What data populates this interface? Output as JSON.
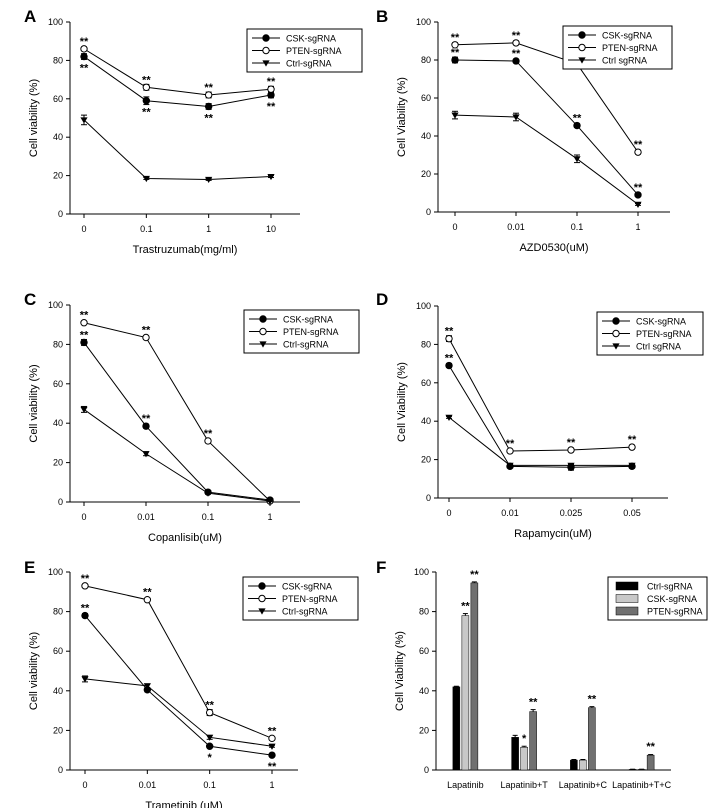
{
  "chart_data": [
    {
      "panel": "A",
      "type": "line",
      "categories": [
        "0",
        "0.1",
        "1",
        "10"
      ],
      "xlabel": "Trastruzumab(mg/ml)",
      "ylabel": "Cell viability (%)",
      "ylim": [
        0,
        100
      ],
      "yticks": [
        "0",
        "20",
        "40",
        "60",
        "80",
        "100"
      ],
      "legend_position": "top-right",
      "series": [
        {
          "name": "CSK-sgRNA",
          "marker": "filled-circle",
          "values": [
            82,
            59,
            56,
            62
          ],
          "errors": [
            1.5,
            2,
            1.5,
            1.5
          ]
        },
        {
          "name": "PTEN-sgRNA",
          "marker": "open-circle",
          "values": [
            86,
            66,
            62,
            65
          ],
          "errors": [
            1,
            1.5,
            1.5,
            1.5
          ]
        },
        {
          "name": "Ctrl-sgRNA",
          "marker": "filled-triangle",
          "values": [
            49,
            18.5,
            18,
            19.5
          ],
          "errors": [
            2.5,
            0.5,
            0.5,
            0.5
          ]
        }
      ],
      "annotations": [
        {
          "text": "**",
          "category": "0",
          "value": 86,
          "pos": "above"
        },
        {
          "text": "**",
          "category": "0",
          "value": 82,
          "pos": "below"
        },
        {
          "text": "**",
          "category": "0.1",
          "value": 66,
          "pos": "above"
        },
        {
          "text": "**",
          "category": "0.1",
          "value": 59,
          "pos": "below"
        },
        {
          "text": "**",
          "category": "1",
          "value": 62,
          "pos": "above"
        },
        {
          "text": "**",
          "category": "1",
          "value": 56,
          "pos": "below"
        },
        {
          "text": "**",
          "category": "10",
          "value": 65,
          "pos": "above"
        },
        {
          "text": "**",
          "category": "10",
          "value": 62,
          "pos": "below"
        }
      ]
    },
    {
      "panel": "B",
      "type": "line",
      "categories": [
        "0",
        "0.01",
        "0.1",
        "1"
      ],
      "xlabel": "AZD0530(uM)",
      "ylabel": "Cell Viability (%)",
      "ylim": [
        0,
        100
      ],
      "yticks": [
        "0",
        "20",
        "40",
        "60",
        "80",
        "100"
      ],
      "legend_position": "top-right",
      "series": [
        {
          "name": "CSK-sgRNA",
          "marker": "filled-circle",
          "values": [
            80,
            79.5,
            45.5,
            9
          ],
          "errors": [
            1.5,
            1,
            1,
            0.5
          ]
        },
        {
          "name": "PTEN-sgRNA",
          "marker": "open-circle",
          "values": [
            88,
            89,
            78,
            31.5
          ],
          "errors": [
            1,
            1,
            1,
            1
          ]
        },
        {
          "name": "Ctrl sgRNA",
          "marker": "filled-triangle",
          "values": [
            51,
            50,
            28,
            4
          ],
          "errors": [
            2,
            2,
            2,
            0.5
          ]
        }
      ],
      "annotations": [
        {
          "text": "**",
          "category": "0",
          "value": 88,
          "pos": "above"
        },
        {
          "text": "**",
          "category": "0",
          "value": 80,
          "pos": "above"
        },
        {
          "text": "**",
          "category": "0.01",
          "value": 89,
          "pos": "above"
        },
        {
          "text": "**",
          "category": "0.01",
          "value": 79.5,
          "pos": "above"
        },
        {
          "text": "**",
          "category": "0.1",
          "value": 78,
          "pos": "above"
        },
        {
          "text": "**",
          "category": "0.1",
          "value": 45.5,
          "pos": "above"
        },
        {
          "text": "**",
          "category": "1",
          "value": 31.5,
          "pos": "above"
        },
        {
          "text": "**",
          "category": "1",
          "value": 9,
          "pos": "above"
        }
      ]
    },
    {
      "panel": "C",
      "type": "line",
      "categories": [
        "0",
        "0.01",
        "0.1",
        "1"
      ],
      "xlabel": "Copanlisib(uM)",
      "ylabel": "Cell viability (%)",
      "ylim": [
        0,
        100
      ],
      "yticks": [
        "0",
        "20",
        "40",
        "60",
        "80",
        "100"
      ],
      "legend_position": "top-right",
      "series": [
        {
          "name": "CSK-sgRNA",
          "marker": "filled-circle",
          "values": [
            81,
            38.5,
            5,
            1
          ],
          "errors": [
            1.5,
            1,
            0.5,
            0.3
          ]
        },
        {
          "name": "PTEN-sgRNA",
          "marker": "open-circle",
          "values": [
            91,
            83.5,
            31,
            0.5
          ],
          "errors": [
            0.7,
            0.7,
            1,
            0.3
          ]
        },
        {
          "name": "Ctrl-sgRNA",
          "marker": "filled-triangle",
          "values": [
            47,
            24.5,
            4.5,
            0.5
          ],
          "errors": [
            1.5,
            1,
            0.5,
            0.3
          ]
        }
      ],
      "annotations": [
        {
          "text": "**",
          "category": "0",
          "value": 91,
          "pos": "above"
        },
        {
          "text": "**",
          "category": "0",
          "value": 81,
          "pos": "above"
        },
        {
          "text": "**",
          "category": "0.01",
          "value": 83.5,
          "pos": "above"
        },
        {
          "text": "**",
          "category": "0.01",
          "value": 38.5,
          "pos": "above"
        },
        {
          "text": "**",
          "category": "0.1",
          "value": 31,
          "pos": "above"
        }
      ]
    },
    {
      "panel": "D",
      "type": "line",
      "categories": [
        "0",
        "0.01",
        "0.025",
        "0.05"
      ],
      "xlabel": "Rapamycin(uM)",
      "ylabel": "Cell Viability (%)",
      "ylim": [
        0,
        100
      ],
      "yticks": [
        "0",
        "20",
        "40",
        "60",
        "80",
        "100"
      ],
      "legend_position": "top-right",
      "series": [
        {
          "name": "CSK-sgRNA",
          "marker": "filled-circle",
          "values": [
            69,
            16.5,
            16,
            16.5
          ],
          "errors": [
            1,
            0.5,
            1.5,
            1
          ]
        },
        {
          "name": "PTEN-sgRNA",
          "marker": "open-circle",
          "values": [
            83,
            24.5,
            25,
            26.5
          ],
          "errors": [
            1.5,
            0.5,
            1,
            1
          ]
        },
        {
          "name": "Ctrl sgRNA",
          "marker": "filled-triangle",
          "values": [
            42,
            17,
            17,
            17
          ],
          "errors": [
            0.5,
            0.5,
            0.5,
            0.5
          ]
        }
      ],
      "annotations": [
        {
          "text": "**",
          "category": "0",
          "value": 83,
          "pos": "above"
        },
        {
          "text": "**",
          "category": "0",
          "value": 69,
          "pos": "above"
        },
        {
          "text": "**",
          "category": "0.01",
          "value": 24.5,
          "pos": "above"
        },
        {
          "text": "**",
          "category": "0.025",
          "value": 25,
          "pos": "above"
        },
        {
          "text": "**",
          "category": "0.05",
          "value": 26.5,
          "pos": "above"
        }
      ]
    },
    {
      "panel": "E",
      "type": "line",
      "categories": [
        "0",
        "0.01",
        "0.1",
        "1"
      ],
      "xlabel": "Trametinib (uM)",
      "ylabel": "Cell viability (%)",
      "ylim": [
        0,
        100
      ],
      "yticks": [
        "0",
        "20",
        "40",
        "60",
        "80",
        "100"
      ],
      "legend_position": "top-right",
      "series": [
        {
          "name": "CSK-sgRNA",
          "marker": "filled-circle",
          "values": [
            78,
            40.5,
            12,
            7.5
          ],
          "errors": [
            1,
            1,
            0.5,
            0.5
          ]
        },
        {
          "name": "PTEN-sgRNA",
          "marker": "open-circle",
          "values": [
            93,
            86,
            29,
            16
          ],
          "errors": [
            0.7,
            0.7,
            1.5,
            0.7
          ]
        },
        {
          "name": "Ctrl-sgRNA",
          "marker": "filled-triangle",
          "values": [
            46,
            42.5,
            16.5,
            12
          ],
          "errors": [
            1.5,
            1,
            1,
            0.5
          ]
        }
      ],
      "annotations": [
        {
          "text": "**",
          "category": "0",
          "value": 93,
          "pos": "above"
        },
        {
          "text": "**",
          "category": "0",
          "value": 78,
          "pos": "above"
        },
        {
          "text": "**",
          "category": "0.01",
          "value": 86,
          "pos": "above"
        },
        {
          "text": "**",
          "category": "0.1",
          "value": 29,
          "pos": "above"
        },
        {
          "text": "*",
          "category": "0.1",
          "value": 12,
          "pos": "below"
        },
        {
          "text": "**",
          "category": "1",
          "value": 16,
          "pos": "above"
        },
        {
          "text": "**",
          "category": "1",
          "value": 7.5,
          "pos": "below"
        }
      ]
    },
    {
      "panel": "F",
      "type": "bar",
      "categories": [
        "Lapatinib",
        "Lapatinib+T",
        "Lapatinib+C",
        "Lapatinib+T+C"
      ],
      "xlabel": "",
      "ylabel": "Cell Viability (%)",
      "ylim": [
        0,
        100
      ],
      "yticks": [
        "0",
        "20",
        "40",
        "60",
        "80",
        "100"
      ],
      "legend_position": "top-right",
      "series": [
        {
          "name": "Ctrl-sgRNA",
          "color": "#000000",
          "values": [
            42,
            16.5,
            5,
            0.3
          ],
          "errors": [
            0.3,
            1,
            0.3,
            0.1
          ]
        },
        {
          "name": "CSK-sgRNA",
          "color": "#c8c8c8",
          "values": [
            78,
            11.5,
            5,
            0.3
          ],
          "errors": [
            1,
            0.5,
            0.3,
            0.1
          ]
        },
        {
          "name": "PTEN-sgRNA",
          "color": "#707070",
          "values": [
            94.5,
            29.5,
            31.5,
            7.5
          ],
          "errors": [
            0.5,
            1,
            0.5,
            0.3
          ]
        }
      ],
      "annotations": [
        {
          "text": "**",
          "category": "Lapatinib",
          "series": 1,
          "value": 79
        },
        {
          "text": "**",
          "category": "Lapatinib",
          "series": 2,
          "value": 95
        },
        {
          "text": "*",
          "category": "Lapatinib+T",
          "series": 1,
          "value": 12
        },
        {
          "text": "**",
          "category": "Lapatinib+T",
          "series": 2,
          "value": 30.5
        },
        {
          "text": "**",
          "category": "Lapatinib+C",
          "series": 2,
          "value": 32
        },
        {
          "text": "**",
          "category": "Lapatinib+T+C",
          "series": 2,
          "value": 8
        }
      ]
    }
  ]
}
